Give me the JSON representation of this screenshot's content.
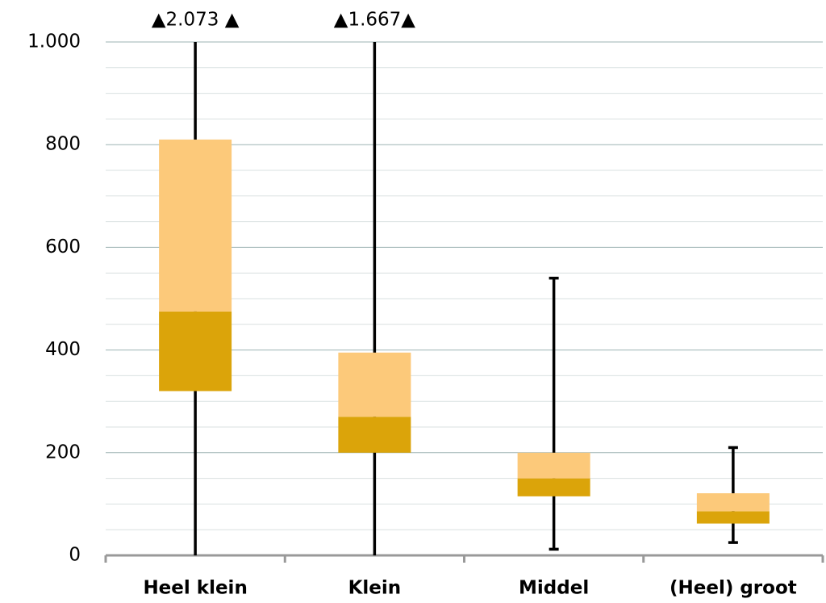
{
  "chart_data": {
    "type": "box",
    "categories": [
      "Heel klein",
      "Klein",
      "Middel",
      "(Heel) groot"
    ],
    "min": [
      0,
      0,
      12,
      25
    ],
    "q1": [
      320,
      200,
      115,
      62
    ],
    "median": [
      475,
      270,
      150,
      86
    ],
    "q3": [
      810,
      395,
      200,
      121
    ],
    "max": [
      2073,
      1667,
      540,
      210
    ],
    "max_labels": [
      "▲2.073 ▲",
      "▲1.667▲",
      null,
      null
    ],
    "lower_color": "#dba40a",
    "upper_color": "#fcc97a",
    "whisker_color": "#000000",
    "ylim": [
      0,
      1000
    ],
    "yticks": [
      0,
      200,
      400,
      600,
      800,
      {
        "value": 1000,
        "label": "1.000"
      }
    ],
    "minor_yticks": [
      50,
      100,
      150,
      250,
      300,
      350,
      450,
      500,
      550,
      650,
      700,
      750,
      850,
      900,
      950
    ],
    "grid": true
  }
}
